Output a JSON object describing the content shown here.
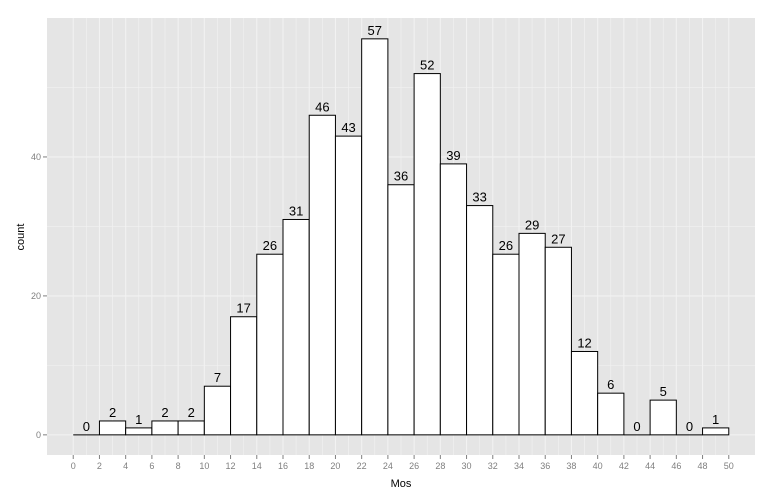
{
  "chart_data": {
    "type": "bar",
    "xlabel": "Mos",
    "ylabel": "count",
    "bin_width": 2,
    "bin_starts": [
      0,
      2,
      4,
      6,
      8,
      10,
      12,
      14,
      16,
      18,
      20,
      22,
      24,
      26,
      28,
      30,
      32,
      34,
      36,
      38,
      40,
      42,
      44,
      46,
      48
    ],
    "values": [
      0,
      2,
      1,
      2,
      2,
      7,
      17,
      26,
      31,
      46,
      43,
      57,
      36,
      52,
      39,
      33,
      26,
      29,
      27,
      12,
      6,
      0,
      5,
      0,
      1
    ],
    "x_ticks": [
      "0",
      "2",
      "4",
      "6",
      "8",
      "10",
      "12",
      "14",
      "16",
      "18",
      "20",
      "22",
      "24",
      "26",
      "28",
      "30",
      "32",
      "34",
      "36",
      "38",
      "40",
      "42",
      "44",
      "46",
      "48",
      "50"
    ],
    "y_ticks": [
      "0",
      "20",
      "40"
    ],
    "xlim": [
      -2,
      52
    ],
    "ylim": [
      -2.9,
      60
    ],
    "grid": true,
    "colors": {
      "panel": "#e5e5e5",
      "grid": "#f2f2f2",
      "bar_fill": "#ffffff",
      "bar_outline": "#000000",
      "tick_text": "#7f7f7f"
    }
  }
}
